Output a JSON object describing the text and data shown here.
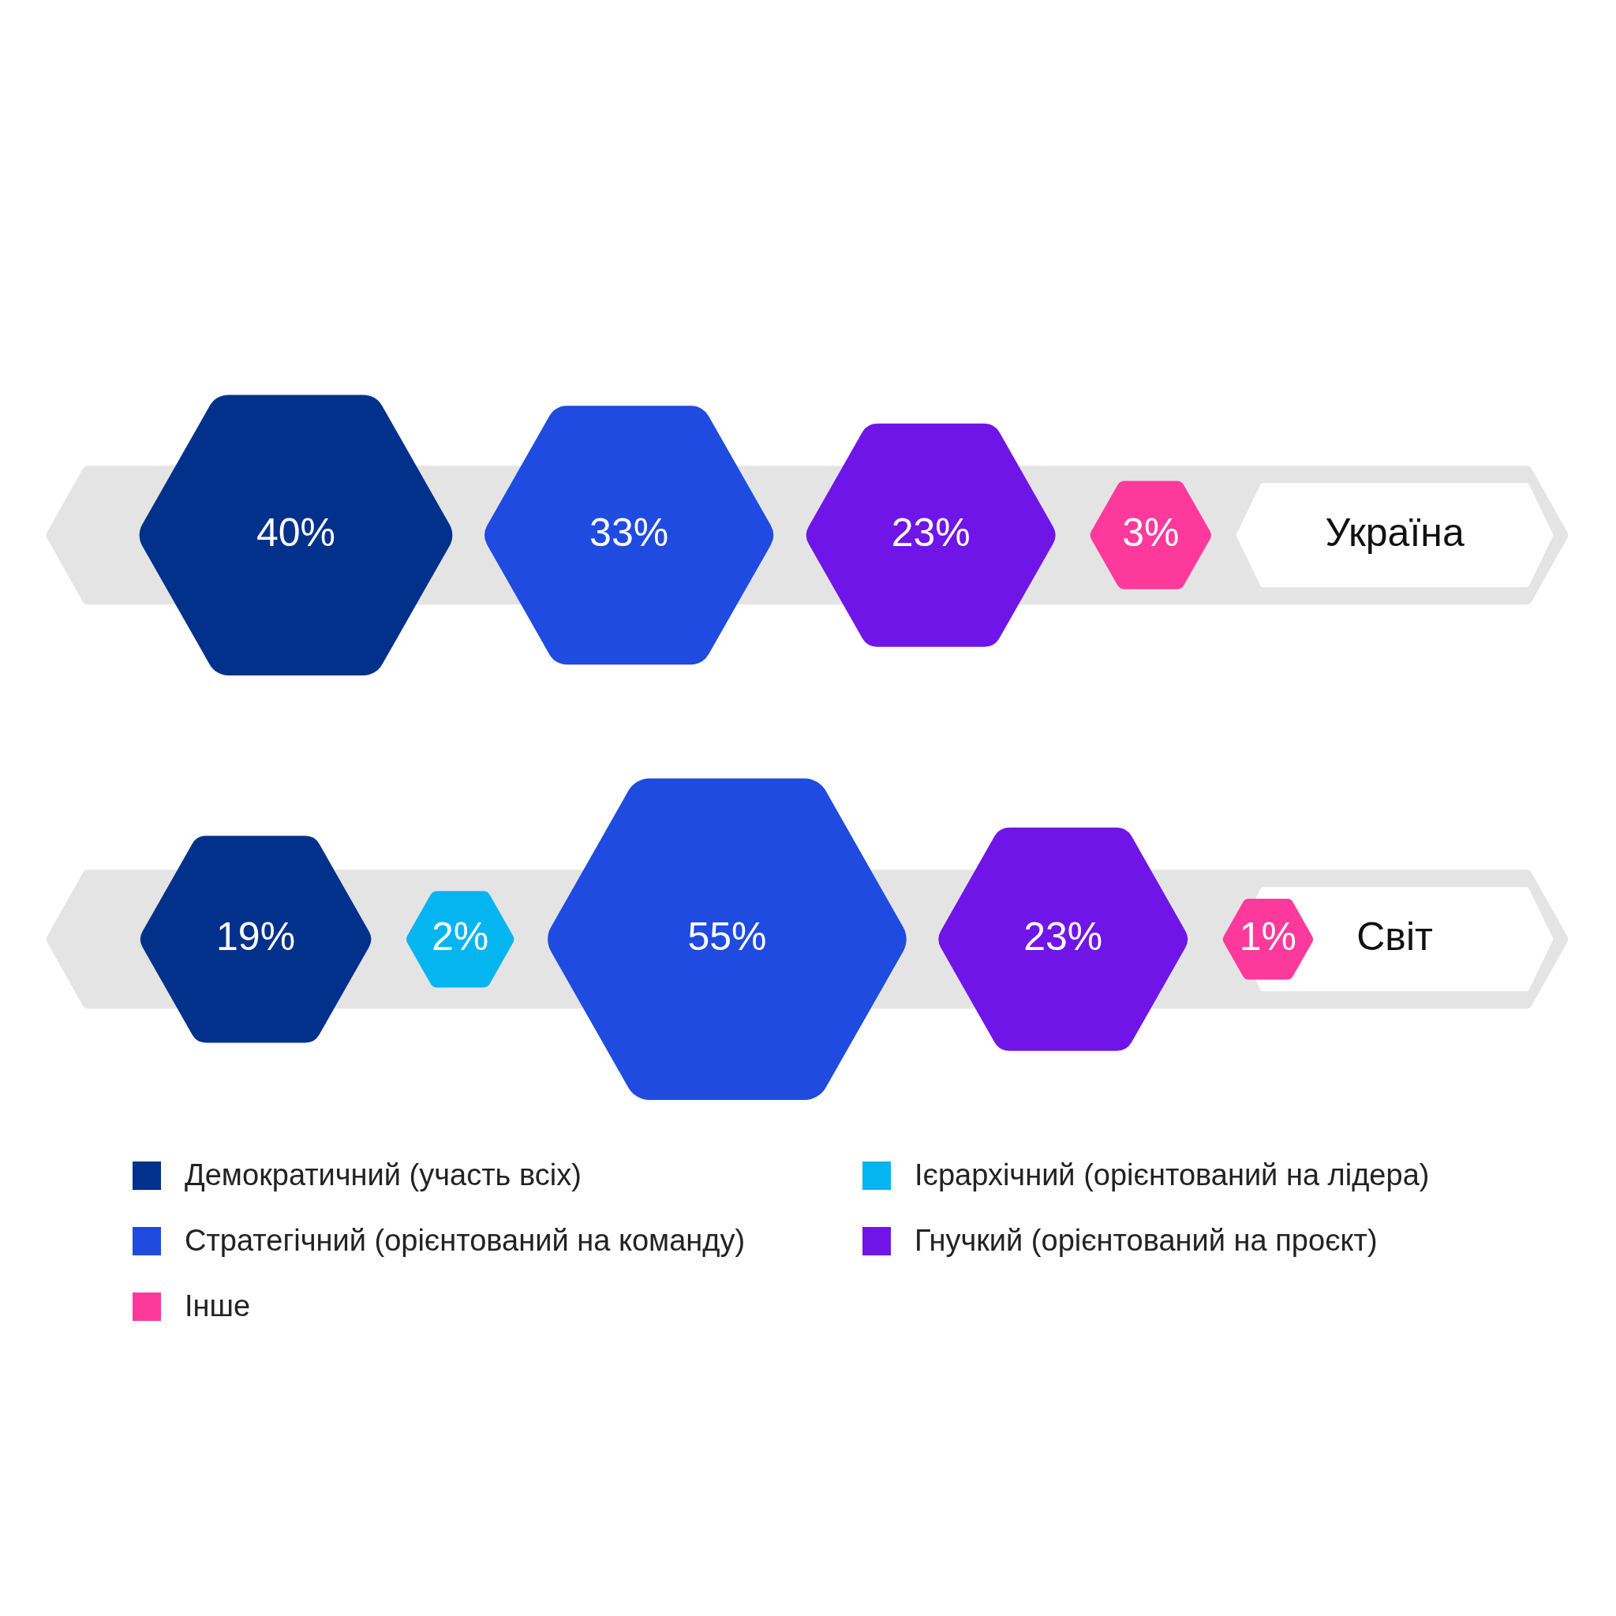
{
  "chart_data": {
    "type": "other",
    "categories": [
      "Україна",
      "Світ"
    ],
    "series": [
      {
        "name": "Демократичний (участь всіх)",
        "color": "#02318c",
        "values": [
          40,
          19
        ],
        "value_labels": [
          "40%",
          "19%"
        ]
      },
      {
        "name": "Ієрархічний (орієнтований на лідера)",
        "color": "#04b5f0",
        "values": [
          null,
          2
        ],
        "value_labels": [
          null,
          "2%"
        ]
      },
      {
        "name": "Стратегічний (орієнтований на команду)",
        "color": "#1f4be0",
        "values": [
          33,
          55
        ],
        "value_labels": [
          "33%",
          "55%"
        ]
      },
      {
        "name": "Гнучкий (орієнтований на проєкт)",
        "color": "#7015e8",
        "values": [
          23,
          23
        ],
        "value_labels": [
          "23%",
          "23%"
        ]
      },
      {
        "name": "Інше",
        "color": "#fd3a9c",
        "values": [
          3,
          1
        ],
        "value_labels": [
          "3%",
          "1%"
        ]
      }
    ],
    "legend": "bottom"
  }
}
